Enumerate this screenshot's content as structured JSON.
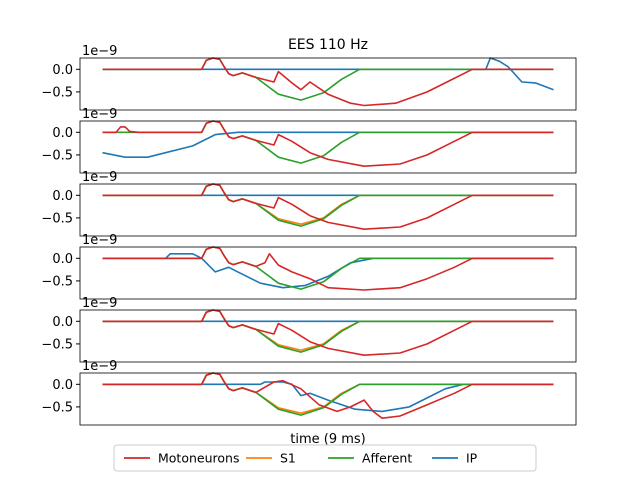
{
  "chart_data": {
    "type": "line",
    "title": "EES 110 Hz",
    "xlabel": "time (9 ms)",
    "ylabel": "",
    "offset_label": "1e−9",
    "y_ticks": [
      "0.0",
      "−0.5"
    ],
    "ylim": [
      -0.9,
      0.25
    ],
    "xlim": [
      -0.05,
      1.05
    ],
    "legend": {
      "placement": "bottom-center",
      "entries": [
        "Motoneurons",
        "S1",
        "Afferent",
        "IP"
      ]
    },
    "colors": {
      "Motoneurons": "#d62728",
      "S1": "#ff7f0e",
      "Afferent": "#2ca02c",
      "IP": "#1f77b4"
    },
    "panels": [
      {
        "series": [
          {
            "name": "IP",
            "x": [
              0,
              0.3,
              0.6,
              0.85,
              0.86,
              0.88,
              0.9,
              0.93,
              0.96,
              1.0
            ],
            "y": [
              0,
              0,
              0,
              0,
              0.25,
              0.18,
              0.05,
              -0.28,
              -0.3,
              -0.45
            ]
          },
          {
            "name": "Afferent",
            "x": [
              0,
              0.22,
              0.23,
              0.245,
              0.26,
              0.27,
              0.28,
              0.29,
              0.31,
              0.34,
              0.39,
              0.44,
              0.49,
              0.53,
              0.57,
              1.0
            ],
            "y": [
              0,
              0,
              0.2,
              0.25,
              0.22,
              0.05,
              -0.1,
              -0.14,
              -0.08,
              -0.18,
              -0.55,
              -0.68,
              -0.52,
              -0.22,
              0,
              0
            ]
          },
          {
            "name": "Motoneurons",
            "x": [
              0,
              0.22,
              0.23,
              0.245,
              0.26,
              0.27,
              0.28,
              0.29,
              0.31,
              0.34,
              0.38,
              0.39,
              0.42,
              0.44,
              0.46,
              0.5,
              0.55,
              0.58,
              0.65,
              0.72,
              0.76,
              0.82,
              1.0
            ],
            "y": [
              0,
              0,
              0.2,
              0.25,
              0.22,
              0.05,
              -0.1,
              -0.14,
              -0.08,
              -0.18,
              -0.28,
              -0.05,
              -0.3,
              -0.45,
              -0.28,
              -0.55,
              -0.75,
              -0.8,
              -0.75,
              -0.5,
              -0.3,
              0,
              0
            ]
          }
        ]
      },
      {
        "series": [
          {
            "name": "IP",
            "x": [
              0,
              0.05,
              0.1,
              0.2,
              0.25,
              0.3,
              0.6,
              1.0
            ],
            "y": [
              -0.45,
              -0.55,
              -0.55,
              -0.3,
              -0.05,
              0,
              0,
              0
            ]
          },
          {
            "name": "Afferent",
            "x": [
              0,
              0.22,
              0.23,
              0.245,
              0.26,
              0.27,
              0.28,
              0.29,
              0.31,
              0.34,
              0.39,
              0.44,
              0.49,
              0.53,
              0.57,
              1.0
            ],
            "y": [
              0,
              0,
              0.2,
              0.25,
              0.22,
              0.05,
              -0.1,
              -0.14,
              -0.08,
              -0.18,
              -0.55,
              -0.68,
              -0.52,
              -0.22,
              0,
              0
            ]
          },
          {
            "name": "Motoneurons",
            "x": [
              0,
              0.03,
              0.04,
              0.05,
              0.06,
              0.08,
              0.22,
              0.23,
              0.245,
              0.26,
              0.27,
              0.28,
              0.29,
              0.31,
              0.34,
              0.38,
              0.39,
              0.42,
              0.46,
              0.5,
              0.58,
              0.66,
              0.72,
              0.78,
              0.82,
              1.0
            ],
            "y": [
              0,
              0,
              0.12,
              0.12,
              0.02,
              0,
              0,
              0.2,
              0.25,
              0.22,
              0.05,
              -0.1,
              -0.14,
              -0.08,
              -0.18,
              -0.28,
              -0.05,
              -0.2,
              -0.45,
              -0.6,
              -0.75,
              -0.7,
              -0.5,
              -0.2,
              0,
              0
            ]
          }
        ]
      },
      {
        "series": [
          {
            "name": "IP",
            "x": [
              0,
              1.0
            ],
            "y": [
              0,
              0
            ]
          },
          {
            "name": "S1",
            "x": [
              0,
              0.22,
              0.23,
              0.245,
              0.26,
              0.27,
              0.28,
              0.29,
              0.31,
              0.34,
              0.39,
              0.44,
              0.49,
              0.53,
              0.57,
              1.0
            ],
            "y": [
              0,
              0,
              0.2,
              0.25,
              0.22,
              0.05,
              -0.1,
              -0.14,
              -0.08,
              -0.18,
              -0.52,
              -0.64,
              -0.5,
              -0.2,
              0,
              0
            ]
          },
          {
            "name": "Afferent",
            "x": [
              0,
              0.22,
              0.23,
              0.245,
              0.26,
              0.27,
              0.28,
              0.29,
              0.31,
              0.34,
              0.39,
              0.44,
              0.49,
              0.53,
              0.57,
              1.0
            ],
            "y": [
              0,
              0,
              0.2,
              0.25,
              0.22,
              0.05,
              -0.1,
              -0.14,
              -0.08,
              -0.18,
              -0.55,
              -0.68,
              -0.52,
              -0.22,
              0,
              0
            ]
          },
          {
            "name": "Motoneurons",
            "x": [
              0,
              0.22,
              0.23,
              0.245,
              0.26,
              0.27,
              0.28,
              0.29,
              0.31,
              0.34,
              0.38,
              0.39,
              0.42,
              0.46,
              0.5,
              0.58,
              0.66,
              0.72,
              0.78,
              0.82,
              1.0
            ],
            "y": [
              0,
              0,
              0.2,
              0.25,
              0.22,
              0.05,
              -0.1,
              -0.14,
              -0.08,
              -0.18,
              -0.28,
              -0.05,
              -0.2,
              -0.45,
              -0.6,
              -0.75,
              -0.7,
              -0.5,
              -0.2,
              0,
              0
            ]
          }
        ]
      },
      {
        "series": [
          {
            "name": "IP",
            "x": [
              0,
              0.14,
              0.15,
              0.2,
              0.22,
              0.25,
              0.28,
              0.3,
              0.35,
              0.4,
              0.45,
              0.5,
              0.55,
              0.6,
              1.0
            ],
            "y": [
              0,
              0,
              0.1,
              0.1,
              0,
              -0.3,
              -0.2,
              -0.3,
              -0.55,
              -0.65,
              -0.6,
              -0.4,
              -0.1,
              0,
              0
            ]
          },
          {
            "name": "Afferent",
            "x": [
              0,
              0.22,
              0.23,
              0.245,
              0.26,
              0.27,
              0.28,
              0.29,
              0.31,
              0.34,
              0.39,
              0.44,
              0.49,
              0.53,
              0.57,
              1.0
            ],
            "y": [
              0,
              0,
              0.2,
              0.25,
              0.22,
              0.05,
              -0.1,
              -0.14,
              -0.08,
              -0.18,
              -0.55,
              -0.68,
              -0.52,
              -0.22,
              0,
              0
            ]
          },
          {
            "name": "Motoneurons",
            "x": [
              0,
              0.22,
              0.23,
              0.245,
              0.26,
              0.27,
              0.28,
              0.29,
              0.31,
              0.34,
              0.36,
              0.37,
              0.39,
              0.42,
              0.46,
              0.5,
              0.58,
              0.66,
              0.72,
              0.78,
              0.82,
              1.0
            ],
            "y": [
              0,
              0,
              0.2,
              0.25,
              0.22,
              0.05,
              -0.1,
              -0.14,
              -0.08,
              -0.18,
              -0.1,
              0.1,
              -0.15,
              -0.3,
              -0.45,
              -0.65,
              -0.7,
              -0.65,
              -0.45,
              -0.2,
              0,
              0
            ]
          }
        ]
      },
      {
        "series": [
          {
            "name": "IP",
            "x": [
              0,
              1.0
            ],
            "y": [
              0,
              0
            ]
          },
          {
            "name": "S1",
            "x": [
              0,
              0.22,
              0.23,
              0.245,
              0.26,
              0.27,
              0.28,
              0.29,
              0.31,
              0.34,
              0.39,
              0.44,
              0.49,
              0.53,
              0.57,
              1.0
            ],
            "y": [
              0,
              0,
              0.2,
              0.25,
              0.22,
              0.05,
              -0.1,
              -0.14,
              -0.08,
              -0.18,
              -0.52,
              -0.64,
              -0.5,
              -0.2,
              0,
              0
            ]
          },
          {
            "name": "Afferent",
            "x": [
              0,
              0.22,
              0.23,
              0.245,
              0.26,
              0.27,
              0.28,
              0.29,
              0.31,
              0.34,
              0.39,
              0.44,
              0.49,
              0.53,
              0.57,
              1.0
            ],
            "y": [
              0,
              0,
              0.2,
              0.25,
              0.22,
              0.05,
              -0.1,
              -0.14,
              -0.08,
              -0.18,
              -0.55,
              -0.68,
              -0.52,
              -0.22,
              0,
              0
            ]
          },
          {
            "name": "Motoneurons",
            "x": [
              0,
              0.22,
              0.23,
              0.245,
              0.26,
              0.27,
              0.28,
              0.29,
              0.31,
              0.34,
              0.38,
              0.39,
              0.42,
              0.46,
              0.5,
              0.58,
              0.66,
              0.72,
              0.78,
              0.82,
              1.0
            ],
            "y": [
              0,
              0,
              0.2,
              0.25,
              0.22,
              0.05,
              -0.1,
              -0.14,
              -0.08,
              -0.18,
              -0.28,
              -0.05,
              -0.2,
              -0.45,
              -0.6,
              -0.75,
              -0.7,
              -0.5,
              -0.2,
              0,
              0
            ]
          }
        ]
      },
      {
        "series": [
          {
            "name": "IP",
            "x": [
              0,
              0.35,
              0.36,
              0.4,
              0.42,
              0.44,
              0.46,
              0.5,
              0.56,
              0.62,
              0.68,
              0.72,
              0.76,
              0.8,
              1.0
            ],
            "y": [
              0,
              0,
              0.05,
              0.05,
              0,
              -0.25,
              -0.2,
              -0.35,
              -0.55,
              -0.6,
              -0.5,
              -0.3,
              -0.1,
              0,
              0
            ]
          },
          {
            "name": "S1",
            "x": [
              0,
              0.22,
              0.23,
              0.245,
              0.26,
              0.27,
              0.28,
              0.29,
              0.31,
              0.34,
              0.39,
              0.44,
              0.49,
              0.53,
              0.57,
              1.0
            ],
            "y": [
              0,
              0,
              0.2,
              0.25,
              0.22,
              0.05,
              -0.1,
              -0.14,
              -0.08,
              -0.18,
              -0.52,
              -0.64,
              -0.5,
              -0.2,
              0,
              0
            ]
          },
          {
            "name": "Afferent",
            "x": [
              0,
              0.22,
              0.23,
              0.245,
              0.26,
              0.27,
              0.28,
              0.29,
              0.31,
              0.34,
              0.39,
              0.44,
              0.49,
              0.53,
              0.57,
              1.0
            ],
            "y": [
              0,
              0,
              0.2,
              0.25,
              0.22,
              0.05,
              -0.1,
              -0.14,
              -0.08,
              -0.18,
              -0.55,
              -0.68,
              -0.52,
              -0.22,
              0,
              0
            ]
          },
          {
            "name": "Motoneurons",
            "x": [
              0,
              0.22,
              0.23,
              0.245,
              0.26,
              0.27,
              0.28,
              0.29,
              0.31,
              0.34,
              0.38,
              0.4,
              0.44,
              0.48,
              0.52,
              0.55,
              0.58,
              0.6,
              0.62,
              0.66,
              0.72,
              0.78,
              0.82,
              1.0
            ],
            "y": [
              0,
              0,
              0.2,
              0.25,
              0.22,
              0.05,
              -0.1,
              -0.14,
              -0.08,
              -0.18,
              0.05,
              0.08,
              -0.1,
              -0.45,
              -0.6,
              -0.5,
              -0.35,
              -0.6,
              -0.75,
              -0.7,
              -0.45,
              -0.2,
              0,
              0
            ]
          }
        ]
      }
    ]
  }
}
